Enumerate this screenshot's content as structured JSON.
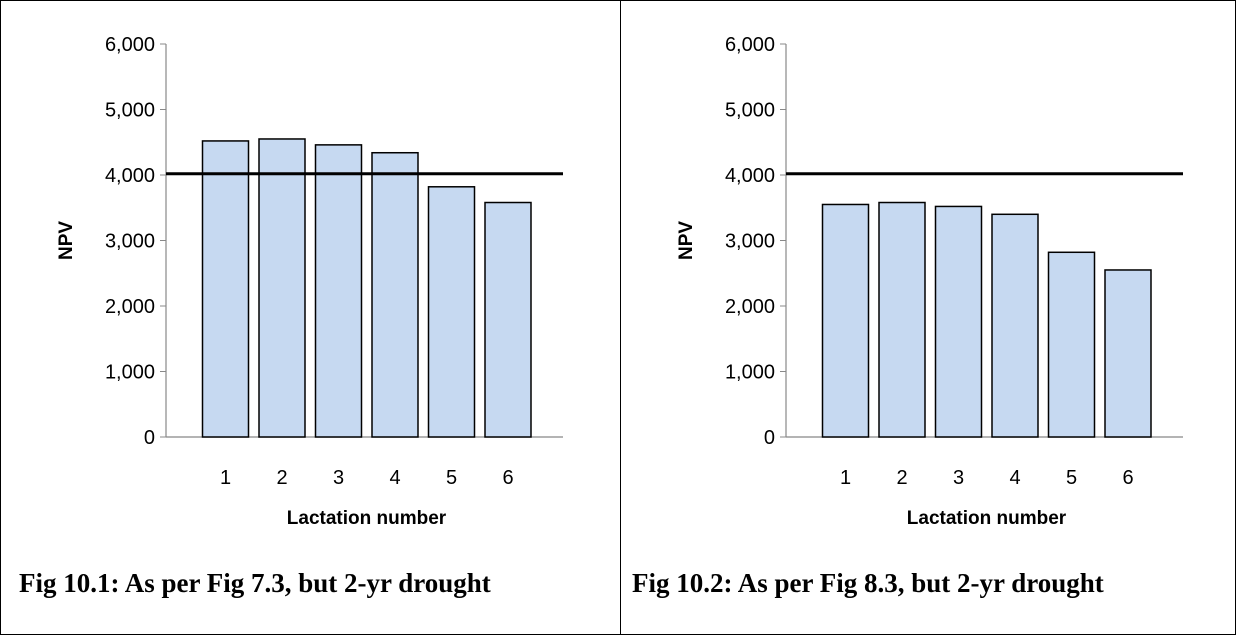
{
  "chart_data": [
    {
      "type": "bar",
      "xlabel": "Lactation number",
      "ylabel": "NPV",
      "categories": [
        "1",
        "2",
        "3",
        "4",
        "5",
        "6"
      ],
      "values": [
        4520,
        4550,
        4460,
        4340,
        3820,
        3580
      ],
      "reference_line": 4020,
      "ylim": [
        0,
        6000
      ],
      "yticks": [
        "0",
        "1,000",
        "2,000",
        "3,000",
        "4,000",
        "5,000",
        "6,000"
      ],
      "grid": false,
      "bar_color": "#c6d9f1",
      "caption": "Fig 10.1: As per Fig 7.3, but 2-yr drought"
    },
    {
      "type": "bar",
      "xlabel": "Lactation number",
      "ylabel": "NPV",
      "categories": [
        "1",
        "2",
        "3",
        "4",
        "5",
        "6"
      ],
      "values": [
        3550,
        3580,
        3520,
        3400,
        2820,
        2550
      ],
      "reference_line": 4020,
      "ylim": [
        0,
        6000
      ],
      "yticks": [
        "0",
        "1,000",
        "2,000",
        "3,000",
        "4,000",
        "5,000",
        "6,000"
      ],
      "grid": false,
      "bar_color": "#c6d9f1",
      "caption": "Fig 10.2: As per Fig 8.3, but 2-yr drought"
    }
  ]
}
